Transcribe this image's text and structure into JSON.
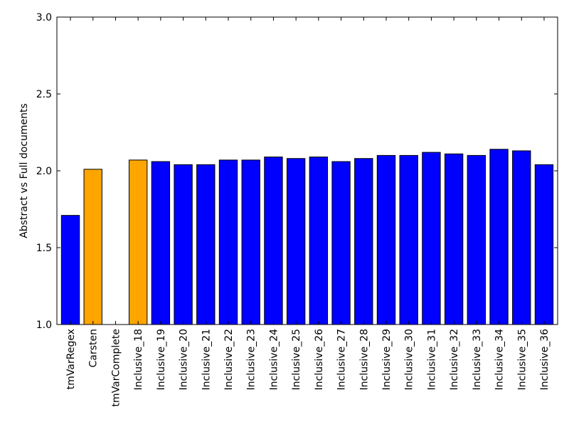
{
  "chart_data": {
    "type": "bar",
    "title": "",
    "xlabel": "",
    "ylabel": "Abstract vs Full documents",
    "ylim": [
      1.0,
      3.0
    ],
    "yticks": [
      "1.0",
      "1.5",
      "2.0",
      "2.5",
      "3.0"
    ],
    "grid": false,
    "categories": [
      "tmVarRegex",
      "Carsten",
      "tmVarComplete",
      "Inclusive_18",
      "Inclusive_19",
      "Inclusive_20",
      "Inclusive_21",
      "Inclusive_22",
      "Inclusive_23",
      "Inclusive_24",
      "Inclusive_25",
      "Inclusive_26",
      "Inclusive_27",
      "Inclusive_28",
      "Inclusive_29",
      "Inclusive_30",
      "Inclusive_31",
      "Inclusive_32",
      "Inclusive_33",
      "Inclusive_34",
      "Inclusive_35",
      "Inclusive_36"
    ],
    "values": [
      1.71,
      2.01,
      null,
      2.07,
      2.06,
      2.04,
      2.04,
      2.07,
      2.07,
      2.09,
      2.08,
      2.09,
      2.06,
      2.08,
      2.1,
      2.1,
      2.12,
      2.11,
      2.1,
      2.14,
      2.13,
      2.04
    ],
    "bar_colors": [
      "#0000ff",
      "#ffa500",
      "#0000ff",
      "#ffa500",
      "#0000ff",
      "#0000ff",
      "#0000ff",
      "#0000ff",
      "#0000ff",
      "#0000ff",
      "#0000ff",
      "#0000ff",
      "#0000ff",
      "#0000ff",
      "#0000ff",
      "#0000ff",
      "#0000ff",
      "#0000ff",
      "#0000ff",
      "#0000ff",
      "#0000ff",
      "#0000ff"
    ],
    "edge_color": "#000000"
  }
}
